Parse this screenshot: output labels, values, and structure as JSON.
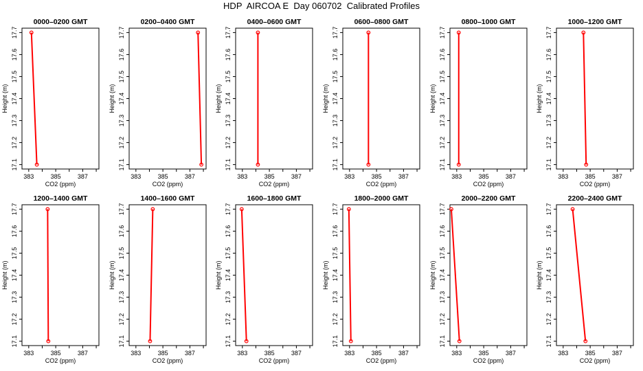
{
  "figure": {
    "title": "HDP  AIRCOA E  Day 060702  Calibrated Profiles"
  },
  "chart_data": [
    {
      "type": "line",
      "title": "0000–0200 GMT",
      "xlabel": "CO2 (ppm)",
      "ylabel": "Height (m)",
      "xlim": [
        382.5,
        388.2
      ],
      "ylim": [
        17.08,
        17.72
      ],
      "x_ticks": [
        383,
        385,
        387
      ],
      "y_ticks": [
        17.1,
        17.2,
        17.3,
        17.4,
        17.5,
        17.6,
        17.7
      ],
      "series": [
        {
          "x": [
            383.2,
            383.6
          ],
          "y": [
            17.7,
            17.1
          ]
        }
      ],
      "color": "#ff0000"
    },
    {
      "type": "line",
      "title": "0200–0400 GMT",
      "xlabel": "CO2 (ppm)",
      "ylabel": "Height (m)",
      "xlim": [
        382.5,
        388.2
      ],
      "ylim": [
        17.08,
        17.72
      ],
      "x_ticks": [
        383,
        385,
        387
      ],
      "y_ticks": [
        17.1,
        17.2,
        17.3,
        17.4,
        17.5,
        17.6,
        17.7
      ],
      "series": [
        {
          "x": [
            387.6,
            387.85
          ],
          "y": [
            17.7,
            17.1
          ]
        }
      ],
      "color": "#ff0000"
    },
    {
      "type": "line",
      "title": "0400–0600 GMT",
      "xlabel": "CO2 (ppm)",
      "ylabel": "Height (m)",
      "xlim": [
        382.5,
        388.2
      ],
      "ylim": [
        17.08,
        17.72
      ],
      "x_ticks": [
        383,
        385,
        387
      ],
      "y_ticks": [
        17.1,
        17.2,
        17.3,
        17.4,
        17.5,
        17.6,
        17.7
      ],
      "series": [
        {
          "x": [
            384.15,
            384.15
          ],
          "y": [
            17.7,
            17.1
          ]
        }
      ],
      "color": "#ff0000"
    },
    {
      "type": "line",
      "title": "0600–0800 GMT",
      "xlabel": "CO2 (ppm)",
      "ylabel": "Height (m)",
      "xlim": [
        382.5,
        388.2
      ],
      "ylim": [
        17.08,
        17.72
      ],
      "x_ticks": [
        383,
        385,
        387
      ],
      "y_ticks": [
        17.1,
        17.2,
        17.3,
        17.4,
        17.5,
        17.6,
        17.7
      ],
      "series": [
        {
          "x": [
            384.4,
            384.4
          ],
          "y": [
            17.7,
            17.1
          ]
        }
      ],
      "color": "#ff0000"
    },
    {
      "type": "line",
      "title": "0800–1000 GMT",
      "xlabel": "CO2 (ppm)",
      "ylabel": "Height (m)",
      "xlim": [
        382.5,
        388.2
      ],
      "ylim": [
        17.08,
        17.72
      ],
      "x_ticks": [
        383,
        385,
        387
      ],
      "y_ticks": [
        17.1,
        17.2,
        17.3,
        17.4,
        17.5,
        17.6,
        17.7
      ],
      "series": [
        {
          "x": [
            383.15,
            383.15
          ],
          "y": [
            17.7,
            17.1
          ]
        }
      ],
      "color": "#ff0000"
    },
    {
      "type": "line",
      "title": "1000–1200 GMT",
      "xlabel": "CO2 (ppm)",
      "ylabel": "Height (m)",
      "xlim": [
        382.5,
        388.2
      ],
      "ylim": [
        17.08,
        17.72
      ],
      "x_ticks": [
        383,
        385,
        387
      ],
      "y_ticks": [
        17.1,
        17.2,
        17.3,
        17.4,
        17.5,
        17.6,
        17.7
      ],
      "series": [
        {
          "x": [
            384.5,
            384.7
          ],
          "y": [
            17.7,
            17.1
          ]
        }
      ],
      "color": "#ff0000"
    },
    {
      "type": "line",
      "title": "1200–1400 GMT",
      "xlabel": "CO2 (ppm)",
      "ylabel": "Height (m)",
      "xlim": [
        382.5,
        388.2
      ],
      "ylim": [
        17.08,
        17.72
      ],
      "x_ticks": [
        383,
        385,
        387
      ],
      "y_ticks": [
        17.1,
        17.2,
        17.3,
        17.4,
        17.5,
        17.6,
        17.7
      ],
      "series": [
        {
          "x": [
            384.4,
            384.45
          ],
          "y": [
            17.7,
            17.1
          ]
        }
      ],
      "color": "#ff0000"
    },
    {
      "type": "line",
      "title": "1400–1600 GMT",
      "xlabel": "CO2 (ppm)",
      "ylabel": "Height (m)",
      "xlim": [
        382.5,
        388.2
      ],
      "ylim": [
        17.08,
        17.72
      ],
      "x_ticks": [
        383,
        385,
        387
      ],
      "y_ticks": [
        17.1,
        17.2,
        17.3,
        17.4,
        17.5,
        17.6,
        17.7
      ],
      "series": [
        {
          "x": [
            384.25,
            384.05
          ],
          "y": [
            17.7,
            17.1
          ]
        }
      ],
      "color": "#ff0000"
    },
    {
      "type": "line",
      "title": "1600–1800 GMT",
      "xlabel": "CO2 (ppm)",
      "ylabel": "Height (m)",
      "xlim": [
        382.5,
        388.2
      ],
      "ylim": [
        17.08,
        17.72
      ],
      "x_ticks": [
        383,
        385,
        387
      ],
      "y_ticks": [
        17.1,
        17.2,
        17.3,
        17.4,
        17.5,
        17.6,
        17.7
      ],
      "series": [
        {
          "x": [
            382.95,
            383.3
          ],
          "y": [
            17.7,
            17.1
          ]
        }
      ],
      "color": "#ff0000"
    },
    {
      "type": "line",
      "title": "1800–2000 GMT",
      "xlabel": "CO2 (ppm)",
      "ylabel": "Height (m)",
      "xlim": [
        382.5,
        388.2
      ],
      "ylim": [
        17.08,
        17.72
      ],
      "x_ticks": [
        383,
        385,
        387
      ],
      "y_ticks": [
        17.1,
        17.2,
        17.3,
        17.4,
        17.5,
        17.6,
        17.7
      ],
      "series": [
        {
          "x": [
            382.95,
            383.1
          ],
          "y": [
            17.7,
            17.1
          ]
        }
      ],
      "color": "#ff0000"
    },
    {
      "type": "line",
      "title": "2000–2200 GMT",
      "xlabel": "CO2 (ppm)",
      "ylabel": "Height (m)",
      "xlim": [
        382.5,
        388.2
      ],
      "ylim": [
        17.08,
        17.72
      ],
      "x_ticks": [
        383,
        385,
        387
      ],
      "y_ticks": [
        17.1,
        17.2,
        17.3,
        17.4,
        17.5,
        17.6,
        17.7
      ],
      "series": [
        {
          "x": [
            382.6,
            383.2
          ],
          "y": [
            17.7,
            17.1
          ]
        }
      ],
      "color": "#ff0000"
    },
    {
      "type": "line",
      "title": "2200–2400 GMT",
      "xlabel": "CO2 (ppm)",
      "ylabel": "Height (m)",
      "xlim": [
        382.5,
        388.2
      ],
      "ylim": [
        17.08,
        17.72
      ],
      "x_ticks": [
        383,
        385,
        387
      ],
      "y_ticks": [
        17.1,
        17.2,
        17.3,
        17.4,
        17.5,
        17.6,
        17.7
      ],
      "series": [
        {
          "x": [
            383.7,
            384.65
          ],
          "y": [
            17.7,
            17.1
          ]
        }
      ],
      "color": "#ff0000"
    }
  ]
}
